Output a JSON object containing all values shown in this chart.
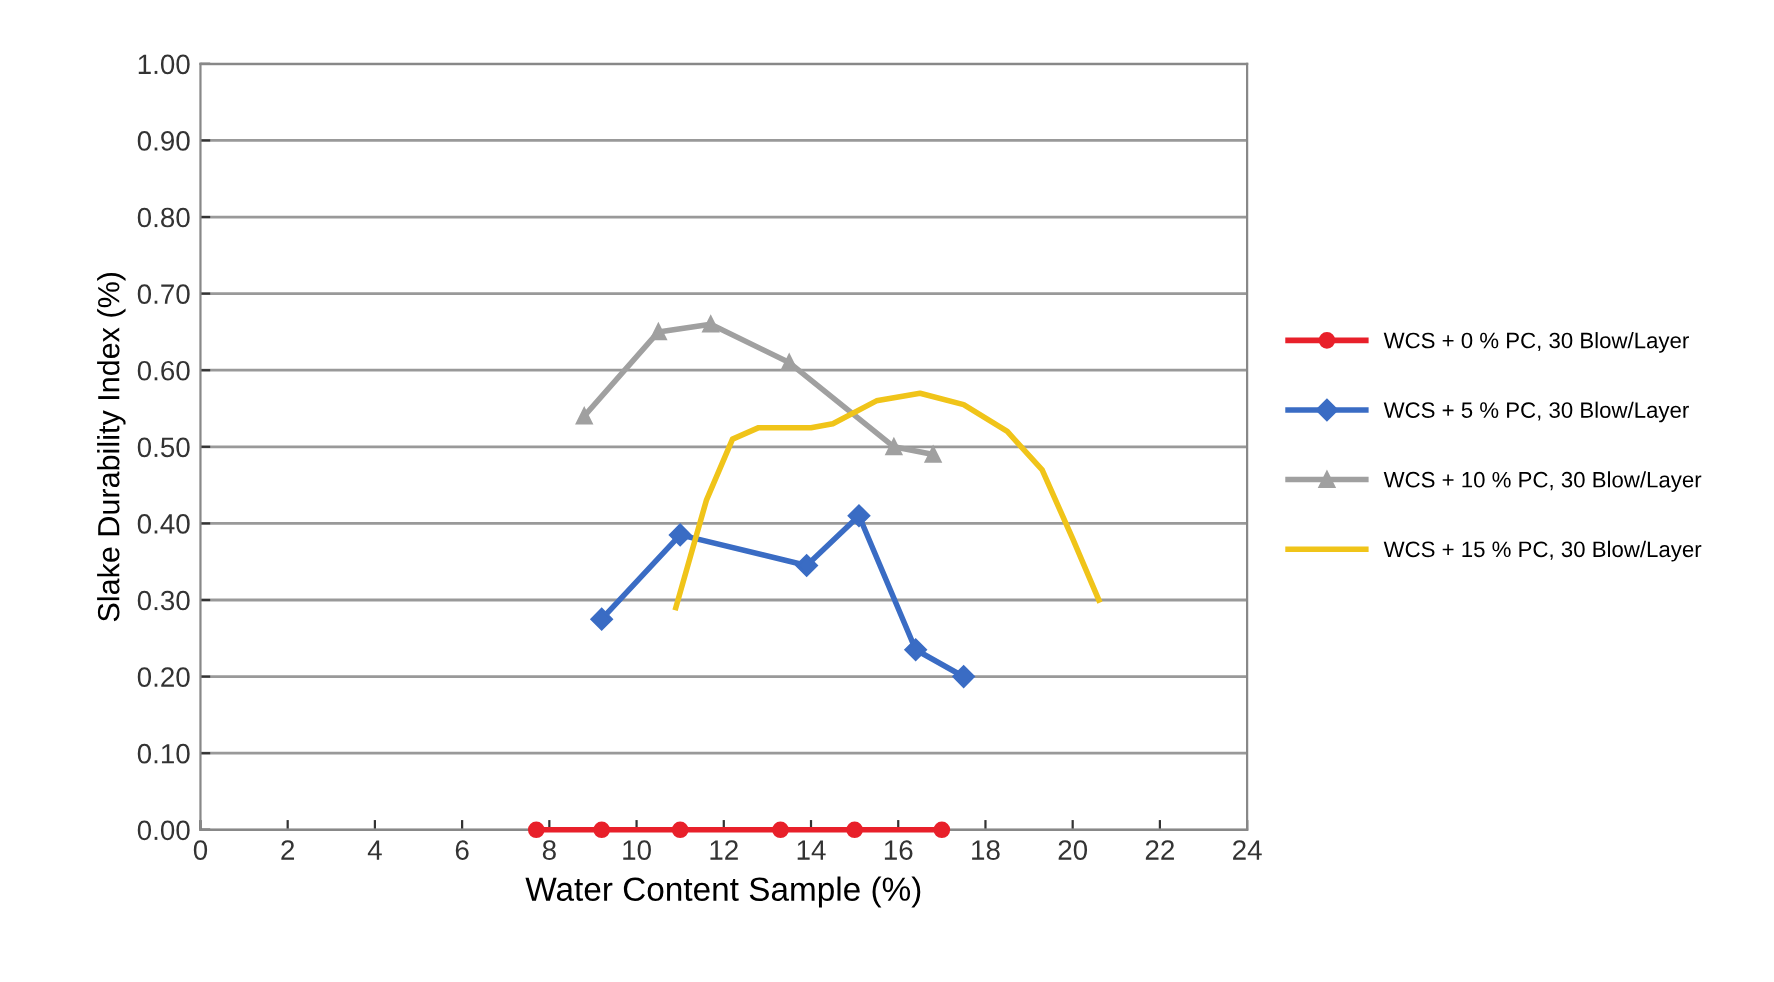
{
  "chart_data": {
    "type": "line",
    "xlabel": "Water Content Sample (%)",
    "ylabel": "Slake Durability Index (%)",
    "xlim": [
      0,
      24
    ],
    "xticks": [
      0,
      2,
      4,
      6,
      8,
      10,
      12,
      14,
      16,
      18,
      20,
      22,
      24
    ],
    "ylim": [
      0,
      1
    ],
    "yticks": [
      {
        "value": 0,
        "label": "0.00"
      },
      {
        "value": 0.1,
        "label": "0.10"
      },
      {
        "value": 0.2,
        "label": "0.20"
      },
      {
        "value": 0.3,
        "label": "0.30"
      },
      {
        "value": 0.4,
        "label": "0.40"
      },
      {
        "value": 0.5,
        "label": "0.50"
      },
      {
        "value": 0.6,
        "label": "0.60"
      },
      {
        "value": 0.7,
        "label": "0.70"
      },
      {
        "value": 0.8,
        "label": "0.80"
      },
      {
        "value": 0.9,
        "label": "0.90"
      },
      {
        "value": 1,
        "label": "1.00"
      }
    ],
    "grid": "y",
    "legend": "right",
    "series": [
      {
        "name": "WCS + 0 % PC, 30 Blow/Layer",
        "color": "#e8202a",
        "marker": "circle",
        "x": [
          7.7,
          9.2,
          11.0,
          13.3,
          15.0,
          17.0
        ],
        "values": [
          0,
          0,
          0,
          0,
          0,
          0
        ]
      },
      {
        "name": "WCS + 5 % PC, 30 Blow/Layer",
        "color": "#3a6cc4",
        "marker": "diamond",
        "x": [
          9.2,
          11.0,
          13.9,
          15.1,
          16.4,
          17.5
        ],
        "values": [
          0.275,
          0.385,
          0.345,
          0.41,
          0.235,
          0.2
        ]
      },
      {
        "name": "WCS + 10 % PC, 30 Blow/Layer",
        "color": "#a0a0a0",
        "marker": "triangle",
        "x": [
          8.8,
          10.5,
          11.7,
          13.5,
          15.9,
          16.8
        ],
        "values": [
          0.54,
          0.65,
          0.66,
          0.61,
          0.5,
          0.49
        ]
      },
      {
        "name": "WCS + 15 % PC, 30 Blow/Layer",
        "color": "#f0c419",
        "marker": "none",
        "x": [
          10.9,
          11.6,
          12.2,
          12.8,
          14.0,
          14.5,
          15.5,
          16.5,
          17.5,
          18.5,
          19.3,
          20.0,
          20.6
        ],
        "values": [
          0.29,
          0.43,
          0.51,
          0.525,
          0.525,
          0.53,
          0.56,
          0.57,
          0.555,
          0.52,
          0.47,
          0.38,
          0.3
        ]
      }
    ]
  }
}
